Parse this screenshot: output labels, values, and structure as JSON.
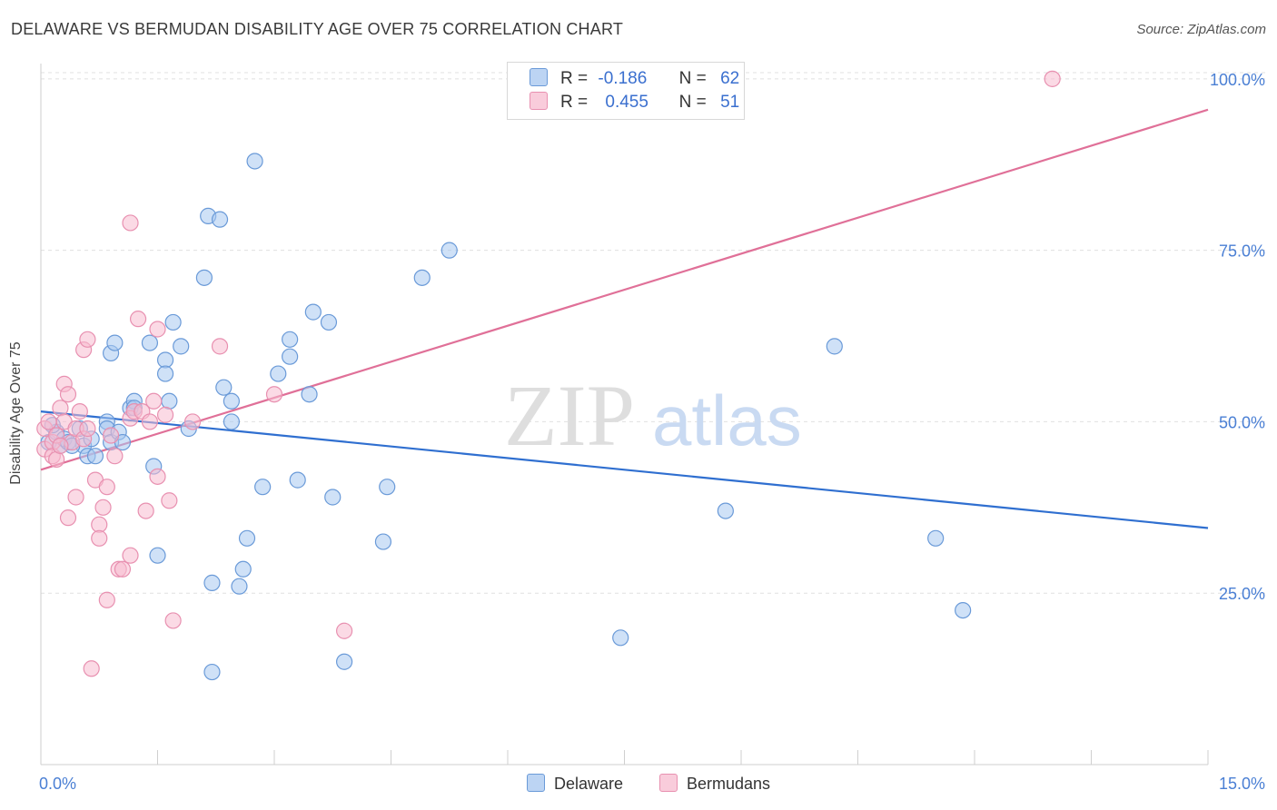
{
  "header": {
    "title": "DELAWARE VS BERMUDAN DISABILITY AGE OVER 75 CORRELATION CHART",
    "source": "Source: ZipAtlas.com"
  },
  "legend": {
    "rows": [
      {
        "r_label": "R =",
        "r_value": "-0.186",
        "n_label": "N =",
        "n_value": "62"
      },
      {
        "r_label": "R =",
        "r_value": "0.455",
        "n_label": "N =",
        "n_value": "51"
      }
    ],
    "bottom": [
      "Delaware",
      "Bermudans"
    ]
  },
  "watermark": {
    "zip": "ZIP",
    "atlas": "atlas"
  },
  "colors": {
    "delaware_fill": "#a8c8f0",
    "delaware_stroke": "#6a9ad8",
    "delaware_line": "#2f6fd0",
    "bermudans_fill": "#f7bcd0",
    "bermudans_stroke": "#e890b0",
    "bermudans_line": "#e07098",
    "axis_label": "#4a7fd4",
    "grid": "#e0e0e0"
  },
  "chart_data": {
    "type": "scatter",
    "title": "DELAWARE VS BERMUDAN DISABILITY AGE OVER 75 CORRELATION CHART",
    "xlabel": "",
    "ylabel": "Disability Age Over 75",
    "xlim": [
      0,
      15
    ],
    "ylim": [
      0,
      105
    ],
    "x_tick_labels": [
      "0.0%",
      "15.0%"
    ],
    "y_ticks": [
      25,
      50,
      75,
      100
    ],
    "y_tick_labels": [
      "25.0%",
      "50.0%",
      "75.0%",
      "100.0%"
    ],
    "series": [
      {
        "name": "Delaware",
        "r": -0.186,
        "n": 62,
        "trend": {
          "x": [
            0,
            15
          ],
          "y": [
            51.5,
            34.5
          ]
        },
        "points": [
          [
            0.1,
            47
          ],
          [
            0.2,
            48.5
          ],
          [
            0.25,
            46.5
          ],
          [
            0.3,
            47.5
          ],
          [
            0.5,
            49
          ],
          [
            0.55,
            46.5
          ],
          [
            0.6,
            45
          ],
          [
            0.7,
            45
          ],
          [
            0.85,
            50
          ],
          [
            0.85,
            49
          ],
          [
            0.9,
            47
          ],
          [
            0.9,
            60
          ],
          [
            0.95,
            61.5
          ],
          [
            1.0,
            48.5
          ],
          [
            1.15,
            52
          ],
          [
            1.2,
            53
          ],
          [
            1.2,
            52
          ],
          [
            1.4,
            61.5
          ],
          [
            1.45,
            43.5
          ],
          [
            1.5,
            30.5
          ],
          [
            1.6,
            59
          ],
          [
            1.6,
            57
          ],
          [
            1.65,
            53
          ],
          [
            1.7,
            64.5
          ],
          [
            1.8,
            61
          ],
          [
            1.9,
            49
          ],
          [
            2.1,
            71
          ],
          [
            2.15,
            80
          ],
          [
            2.2,
            26.5
          ],
          [
            2.2,
            13.5
          ],
          [
            2.3,
            79.5
          ],
          [
            2.35,
            55
          ],
          [
            2.45,
            53
          ],
          [
            2.45,
            50
          ],
          [
            2.55,
            26
          ],
          [
            2.6,
            28.5
          ],
          [
            2.65,
            33
          ],
          [
            2.75,
            88
          ],
          [
            2.85,
            40.5
          ],
          [
            3.05,
            57
          ],
          [
            3.2,
            62
          ],
          [
            3.2,
            59.5
          ],
          [
            3.3,
            41.5
          ],
          [
            3.45,
            54
          ],
          [
            3.5,
            66
          ],
          [
            3.7,
            64.5
          ],
          [
            3.75,
            39
          ],
          [
            3.9,
            15
          ],
          [
            4.4,
            32.5
          ],
          [
            4.45,
            40.5
          ],
          [
            4.9,
            71
          ],
          [
            5.25,
            75
          ],
          [
            7.45,
            18.5
          ],
          [
            8.8,
            37
          ],
          [
            10.2,
            61
          ],
          [
            11.5,
            33
          ],
          [
            11.85,
            22.5
          ],
          [
            0.15,
            49.5
          ],
          [
            0.35,
            47
          ],
          [
            0.4,
            46.5
          ],
          [
            1.05,
            47
          ],
          [
            0.65,
            47.5
          ]
        ]
      },
      {
        "name": "Bermudans",
        "r": 0.455,
        "n": 51,
        "trend": {
          "x": [
            0,
            15
          ],
          "y": [
            43,
            95.5
          ]
        },
        "points": [
          [
            0.05,
            46
          ],
          [
            0.05,
            49
          ],
          [
            0.1,
            50
          ],
          [
            0.15,
            47
          ],
          [
            0.15,
            45
          ],
          [
            0.2,
            48
          ],
          [
            0.2,
            44.5
          ],
          [
            0.25,
            52
          ],
          [
            0.3,
            55.5
          ],
          [
            0.3,
            50
          ],
          [
            0.35,
            54
          ],
          [
            0.35,
            36
          ],
          [
            0.4,
            47
          ],
          [
            0.45,
            49
          ],
          [
            0.45,
            39
          ],
          [
            0.5,
            51.5
          ],
          [
            0.55,
            47.5
          ],
          [
            0.55,
            60.5
          ],
          [
            0.6,
            62
          ],
          [
            0.6,
            49
          ],
          [
            0.65,
            14
          ],
          [
            0.7,
            41.5
          ],
          [
            0.75,
            35
          ],
          [
            0.75,
            33
          ],
          [
            0.8,
            37.5
          ],
          [
            0.85,
            40.5
          ],
          [
            0.85,
            24
          ],
          [
            0.9,
            48
          ],
          [
            0.95,
            45
          ],
          [
            1.0,
            28.5
          ],
          [
            1.05,
            28.5
          ],
          [
            1.15,
            50.5
          ],
          [
            1.15,
            30.5
          ],
          [
            1.15,
            79
          ],
          [
            1.2,
            51.5
          ],
          [
            1.25,
            65
          ],
          [
            1.3,
            51.5
          ],
          [
            1.35,
            37
          ],
          [
            1.4,
            50
          ],
          [
            1.45,
            53
          ],
          [
            1.5,
            63.5
          ],
          [
            1.5,
            42
          ],
          [
            1.6,
            51
          ],
          [
            1.65,
            38.5
          ],
          [
            1.7,
            21
          ],
          [
            1.95,
            50
          ],
          [
            2.3,
            61
          ],
          [
            3.0,
            54
          ],
          [
            3.9,
            19.5
          ],
          [
            13.0,
            100
          ],
          [
            0.25,
            46.5
          ]
        ]
      }
    ]
  }
}
